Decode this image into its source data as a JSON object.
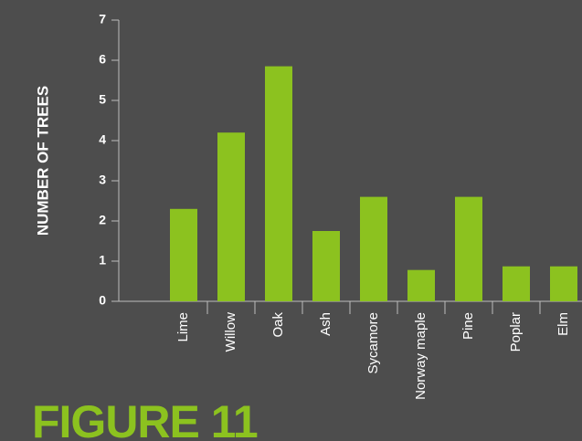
{
  "chart_data": {
    "type": "bar",
    "y_axis_label": "NUMBER OF TREES",
    "caption": "FIGURE 11",
    "categories": [
      "Lime",
      "Willow",
      "Oak",
      "Ash",
      "Sycamore",
      "Norway maple",
      "Pine",
      "Poplar",
      "Elm"
    ],
    "values": [
      2.3,
      4.2,
      5.85,
      1.75,
      2.6,
      0.78,
      2.6,
      0.87,
      0.87
    ],
    "color": "#8cc21f",
    "ylim": [
      0,
      7
    ],
    "yticks": [
      0,
      1,
      2,
      3,
      4,
      5,
      6,
      7
    ],
    "grid": false
  }
}
